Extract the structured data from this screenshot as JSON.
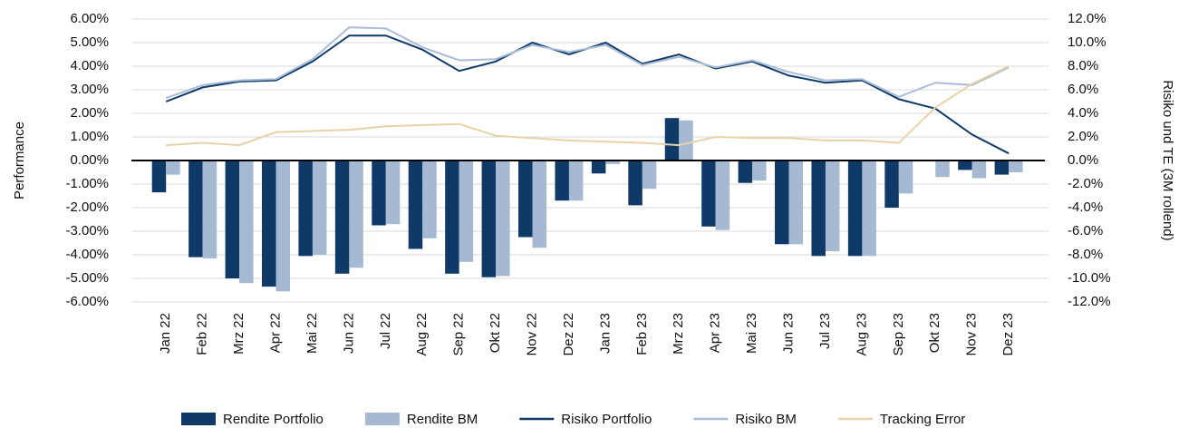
{
  "chart_data": {
    "type": "bar-line",
    "y_label": "Performance",
    "y2_label": "Risiko und TE (3M rollend)",
    "categories": [
      "Jan 22",
      "Feb 22",
      "Mrz 22",
      "Apr 22",
      "Mai 22",
      "Jun 22",
      "Jul 22",
      "Aug 22",
      "Sep 22",
      "Okt 22",
      "Nov 22",
      "Dez 22",
      "Jan 23",
      "Feb 23",
      "Mrz 23",
      "Apr 23",
      "Mai 23",
      "Jun 23",
      "Jul 23",
      "Aug 23",
      "Sep 23",
      "Okt 23",
      "Nov 23",
      "Dez 23"
    ],
    "series": [
      {
        "name": "Rendite Portfolio",
        "kind": "bar",
        "color": "#0f3a68",
        "values": [
          -1.35,
          -4.1,
          -5.0,
          -5.35,
          -4.05,
          -4.8,
          -2.75,
          -3.75,
          -4.8,
          -4.95,
          -3.25,
          -1.7,
          -0.55,
          -1.9,
          1.8,
          -2.8,
          -0.95,
          -3.55,
          -4.05,
          -4.05,
          -2.0,
          null,
          -0.4,
          -0.6
        ]
      },
      {
        "name": "Rendite BM",
        "kind": "bar",
        "color": "#a6b9d3",
        "values": [
          -0.6,
          -4.15,
          -5.2,
          -5.55,
          -4.0,
          -4.55,
          -2.7,
          -3.3,
          -4.3,
          -4.9,
          -3.7,
          -1.7,
          -0.15,
          -1.2,
          1.7,
          -2.95,
          -0.85,
          -3.55,
          -3.85,
          -4.05,
          -1.4,
          -0.7,
          -0.75,
          -0.5
        ]
      },
      {
        "name": "Risiko Portfolio",
        "kind": "line",
        "axis": "y2",
        "color": "#0f3a68",
        "values": [
          5.0,
          6.2,
          6.7,
          6.8,
          8.4,
          10.6,
          10.6,
          9.4,
          7.6,
          8.4,
          10.0,
          9.0,
          10.0,
          8.2,
          9.0,
          7.8,
          8.4,
          7.2,
          6.6,
          6.8,
          5.2,
          4.4,
          2.2,
          0.6
        ]
      },
      {
        "name": "Risiko BM",
        "kind": "line",
        "axis": "y2",
        "color": "#a9bcd8",
        "values": [
          5.3,
          6.4,
          6.8,
          6.9,
          8.6,
          11.3,
          11.2,
          9.6,
          8.5,
          8.6,
          9.8,
          9.2,
          9.8,
          8.1,
          8.8,
          7.9,
          8.5,
          7.5,
          6.8,
          6.9,
          5.4,
          6.6,
          6.4,
          7.9
        ]
      },
      {
        "name": "Tracking Error",
        "kind": "line",
        "axis": "y2",
        "color": "#e8d3a9",
        "values": [
          1.3,
          1.5,
          1.3,
          2.4,
          2.5,
          2.6,
          2.9,
          3.0,
          3.1,
          2.1,
          1.9,
          1.7,
          1.6,
          1.5,
          1.3,
          2.0,
          1.9,
          1.9,
          1.7,
          1.7,
          1.5,
          4.5,
          6.5,
          8.0
        ]
      }
    ],
    "ylim": [
      -6,
      6
    ],
    "yticks": [
      {
        "value": 6,
        "label": "6.00%"
      },
      {
        "value": 5,
        "label": "5.00%"
      },
      {
        "value": 4,
        "label": "4.00%"
      },
      {
        "value": 3,
        "label": "3.00%"
      },
      {
        "value": 2,
        "label": "2.00%"
      },
      {
        "value": 1,
        "label": "1.00%"
      },
      {
        "value": 0,
        "label": "0.00%"
      },
      {
        "value": -1,
        "label": "-1.00%"
      },
      {
        "value": -2,
        "label": "-2.00%"
      },
      {
        "value": -3,
        "label": "-3.00%"
      },
      {
        "value": -4,
        "label": "-4.00%"
      },
      {
        "value": -5,
        "label": "-5.00%"
      },
      {
        "value": -6,
        "label": "-6.00%"
      }
    ],
    "y2lim": [
      -12,
      12
    ],
    "y2ticks": [
      {
        "value": 12,
        "label": "12.0%"
      },
      {
        "value": 10,
        "label": "10.0%"
      },
      {
        "value": 8,
        "label": "8.0%"
      },
      {
        "value": 6,
        "label": "6.0%"
      },
      {
        "value": 4,
        "label": "4.0%"
      },
      {
        "value": 2,
        "label": "2.0%"
      },
      {
        "value": 0,
        "label": "0.0%"
      },
      {
        "value": -2,
        "label": "-2.0%"
      },
      {
        "value": -4,
        "label": "-4.0%"
      },
      {
        "value": -6,
        "label": "-6.0%"
      },
      {
        "value": -8,
        "label": "-8.0%"
      },
      {
        "value": -10,
        "label": "-10.0%"
      },
      {
        "value": -12,
        "label": "-12.0%"
      }
    ],
    "grid": true,
    "legend": "bottom"
  }
}
